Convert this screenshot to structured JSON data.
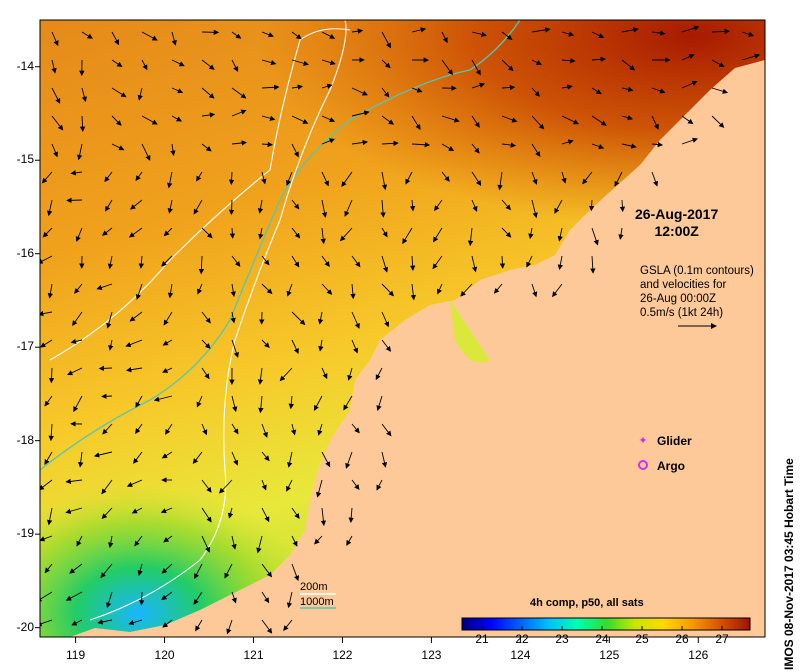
{
  "map": {
    "lon_ticks": [
      "119",
      "120",
      "121",
      "122",
      "123",
      "124",
      "125",
      "126"
    ],
    "lat_ticks": [
      "-14",
      "-15",
      "-16",
      "-17",
      "-18",
      "-19",
      "-20"
    ],
    "lon_range": [
      118.6,
      126.75
    ],
    "lat_range": [
      -20.1,
      -13.5
    ],
    "land_color": "#fdc999",
    "contour_200m_color": "#ffffff",
    "contour_1000m_color": "#53c8b0"
  },
  "annotations": {
    "date_line1": "26-Aug-2017",
    "date_line2": "12:00Z",
    "gsla_line1": "GSLA (0.1m contours)",
    "gsla_line2": "and velocities for",
    "gsla_line3": "26-Aug 00:00Z",
    "gsla_line4": "0.5m/s (1kt 24h)"
  },
  "legend": {
    "glider_label": "Glider",
    "argo_label": "Argo",
    "glider_color": "#cc33ee",
    "argo_color": "#cc33ee",
    "isobath_200": "200m",
    "isobath_1000": "1000m"
  },
  "colorbar": {
    "title": "4h comp, p50, all sats",
    "ticks": [
      "21",
      "22",
      "23",
      "24",
      "25",
      "26",
      "27"
    ],
    "range": [
      20.5,
      27.7
    ],
    "colors": [
      "#00007f",
      "#0000ff",
      "#00aaff",
      "#00ffd5",
      "#2bd93a",
      "#aadd00",
      "#ffff00",
      "#ffc000",
      "#f08c00",
      "#d24b00",
      "#9a1500"
    ]
  },
  "credit": "IMOS 08-Nov-2017 03:45 Hobart Time"
}
